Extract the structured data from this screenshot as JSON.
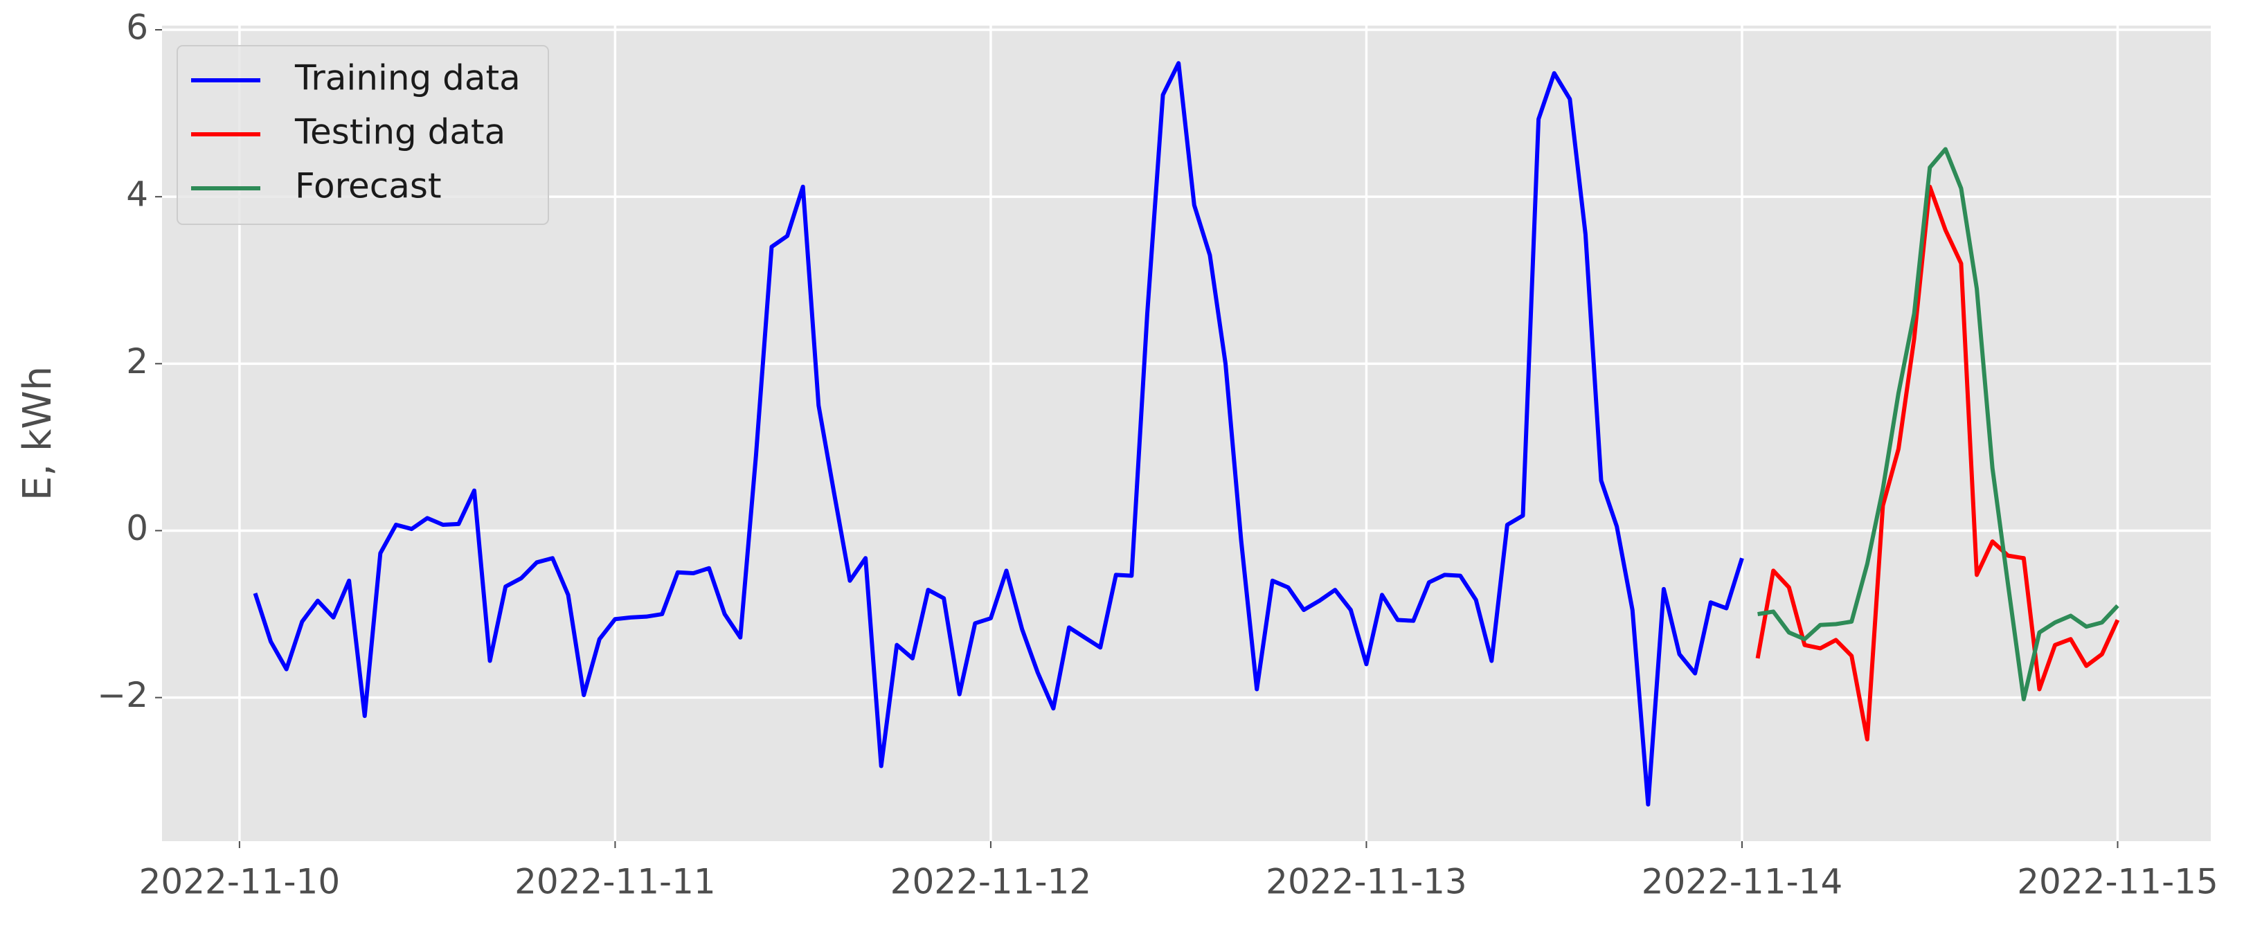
{
  "chart_data": {
    "type": "line",
    "y_label": "E, kWh",
    "xlim": [
      "2022-11-09 19:03",
      "2022-11-15 05:57"
    ],
    "xticks": [
      "2022-11-10",
      "2022-11-11",
      "2022-11-12",
      "2022-11-13",
      "2022-11-14",
      "2022-11-15"
    ],
    "ylim": [
      -3.72,
      6.05
    ],
    "yticks": [
      {
        "value": -2,
        "label": "−2"
      },
      0,
      2,
      4,
      6
    ],
    "grid": true,
    "legend": "upper left",
    "series": [
      {
        "name": "Training data",
        "color": "#0000ff",
        "x": [
          "2022-11-10 01:00",
          "2022-11-10 02:00",
          "2022-11-10 03:00",
          "2022-11-10 04:00",
          "2022-11-10 05:00",
          "2022-11-10 06:00",
          "2022-11-10 07:00",
          "2022-11-10 08:00",
          "2022-11-10 09:00",
          "2022-11-10 10:00",
          "2022-11-10 11:00",
          "2022-11-10 12:00",
          "2022-11-10 13:00",
          "2022-11-10 14:00",
          "2022-11-10 15:00",
          "2022-11-10 16:00",
          "2022-11-10 17:00",
          "2022-11-10 18:00",
          "2022-11-10 19:00",
          "2022-11-10 20:00",
          "2022-11-10 21:00",
          "2022-11-10 22:00",
          "2022-11-10 23:00",
          "2022-11-11 00:00",
          "2022-11-11 01:00",
          "2022-11-11 02:00",
          "2022-11-11 03:00",
          "2022-11-11 04:00",
          "2022-11-11 05:00",
          "2022-11-11 06:00",
          "2022-11-11 07:00",
          "2022-11-11 08:00",
          "2022-11-11 09:00",
          "2022-11-11 10:00",
          "2022-11-11 11:00",
          "2022-11-11 12:00",
          "2022-11-11 13:00",
          "2022-11-11 14:00",
          "2022-11-11 15:00",
          "2022-11-11 16:00",
          "2022-11-11 17:00",
          "2022-11-11 18:00",
          "2022-11-11 19:00",
          "2022-11-11 20:00",
          "2022-11-11 21:00",
          "2022-11-11 22:00",
          "2022-11-11 23:00",
          "2022-11-12 00:00",
          "2022-11-12 01:00",
          "2022-11-12 02:00",
          "2022-11-12 03:00",
          "2022-11-12 04:00",
          "2022-11-12 05:00",
          "2022-11-12 06:00",
          "2022-11-12 07:00",
          "2022-11-12 08:00",
          "2022-11-12 09:00",
          "2022-11-12 10:00",
          "2022-11-12 11:00",
          "2022-11-12 12:00",
          "2022-11-12 13:00",
          "2022-11-12 14:00",
          "2022-11-12 15:00",
          "2022-11-12 16:00",
          "2022-11-12 17:00",
          "2022-11-12 18:00",
          "2022-11-12 19:00",
          "2022-11-12 20:00",
          "2022-11-12 21:00",
          "2022-11-12 22:00",
          "2022-11-12 23:00",
          "2022-11-13 00:00",
          "2022-11-13 01:00",
          "2022-11-13 02:00",
          "2022-11-13 03:00",
          "2022-11-13 04:00",
          "2022-11-13 05:00",
          "2022-11-13 06:00",
          "2022-11-13 07:00",
          "2022-11-13 08:00",
          "2022-11-13 09:00",
          "2022-11-13 10:00",
          "2022-11-13 11:00",
          "2022-11-13 12:00",
          "2022-11-13 13:00",
          "2022-11-13 14:00",
          "2022-11-13 15:00",
          "2022-11-13 16:00",
          "2022-11-13 17:00",
          "2022-11-13 18:00",
          "2022-11-13 19:00",
          "2022-11-13 20:00",
          "2022-11-13 21:00",
          "2022-11-13 22:00",
          "2022-11-13 23:00",
          "2022-11-14 00:00"
        ],
        "values": [
          -0.75,
          -1.33,
          -1.66,
          -1.09,
          -0.84,
          -1.04,
          -0.6,
          -2.22,
          -0.27,
          0.07,
          0.02,
          0.15,
          0.07,
          0.08,
          0.48,
          -1.56,
          -0.67,
          -0.57,
          -0.38,
          -0.33,
          -0.77,
          -1.97,
          -1.3,
          -1.06,
          -1.04,
          -1.03,
          -1.0,
          -0.5,
          -0.51,
          -0.45,
          -1.0,
          -1.28,
          0.9,
          3.4,
          3.53,
          4.12,
          1.5,
          0.44,
          -0.6,
          -0.33,
          -2.82,
          -1.37,
          -1.53,
          -0.71,
          -0.81,
          -1.96,
          -1.11,
          -1.05,
          -0.48,
          -1.18,
          -1.7,
          -2.13,
          -1.16,
          -1.28,
          -1.4,
          -0.53,
          -0.54,
          2.6,
          5.22,
          5.6,
          3.9,
          3.3,
          2.0,
          -0.12,
          -1.9,
          -0.6,
          -0.68,
          -0.95,
          -0.84,
          -0.71,
          -0.95,
          -1.6,
          -0.77,
          -1.07,
          -1.08,
          -0.62,
          -0.53,
          -0.54,
          -0.83,
          -1.56,
          0.07,
          0.18,
          4.93,
          5.48,
          5.17,
          3.55,
          0.6,
          0.05,
          -0.95,
          -3.28,
          -0.7,
          -1.48,
          -1.71,
          -0.86,
          -0.93,
          -0.33
        ]
      },
      {
        "name": "Testing data",
        "color": "#ff0000",
        "x": [
          "2022-11-14 01:00",
          "2022-11-14 02:00",
          "2022-11-14 03:00",
          "2022-11-14 04:00",
          "2022-11-14 05:00",
          "2022-11-14 06:00",
          "2022-11-14 07:00",
          "2022-11-14 08:00",
          "2022-11-14 09:00",
          "2022-11-14 10:00",
          "2022-11-14 11:00",
          "2022-11-14 12:00",
          "2022-11-14 13:00",
          "2022-11-14 14:00",
          "2022-11-14 15:00",
          "2022-11-14 16:00",
          "2022-11-14 17:00",
          "2022-11-14 18:00",
          "2022-11-14 19:00",
          "2022-11-14 20:00",
          "2022-11-14 21:00",
          "2022-11-14 22:00",
          "2022-11-14 23:00",
          "2022-11-15 00:00"
        ],
        "values": [
          -1.53,
          -0.48,
          -0.68,
          -1.37,
          -1.41,
          -1.31,
          -1.5,
          -2.5,
          0.3,
          0.98,
          2.3,
          4.12,
          3.6,
          3.2,
          -0.53,
          -0.13,
          -0.3,
          -0.33,
          -1.9,
          -1.37,
          -1.3,
          -1.62,
          -1.48,
          -1.07
        ]
      },
      {
        "name": "Forecast",
        "color": "#2e8b57",
        "x": [
          "2022-11-14 01:00",
          "2022-11-14 02:00",
          "2022-11-14 03:00",
          "2022-11-14 04:00",
          "2022-11-14 05:00",
          "2022-11-14 06:00",
          "2022-11-14 07:00",
          "2022-11-14 08:00",
          "2022-11-14 09:00",
          "2022-11-14 10:00",
          "2022-11-14 11:00",
          "2022-11-14 12:00",
          "2022-11-14 13:00",
          "2022-11-14 14:00",
          "2022-11-14 15:00",
          "2022-11-14 16:00",
          "2022-11-14 17:00",
          "2022-11-14 18:00",
          "2022-11-14 19:00",
          "2022-11-14 20:00",
          "2022-11-14 21:00",
          "2022-11-14 22:00",
          "2022-11-14 23:00",
          "2022-11-15 00:00"
        ],
        "values": [
          -1.0,
          -0.97,
          -1.22,
          -1.3,
          -1.13,
          -1.12,
          -1.09,
          -0.4,
          0.5,
          1.65,
          2.6,
          4.35,
          4.57,
          4.1,
          2.9,
          0.75,
          -0.65,
          -2.02,
          -1.22,
          -1.1,
          -1.02,
          -1.15,
          -1.1,
          -0.9
        ]
      }
    ]
  }
}
